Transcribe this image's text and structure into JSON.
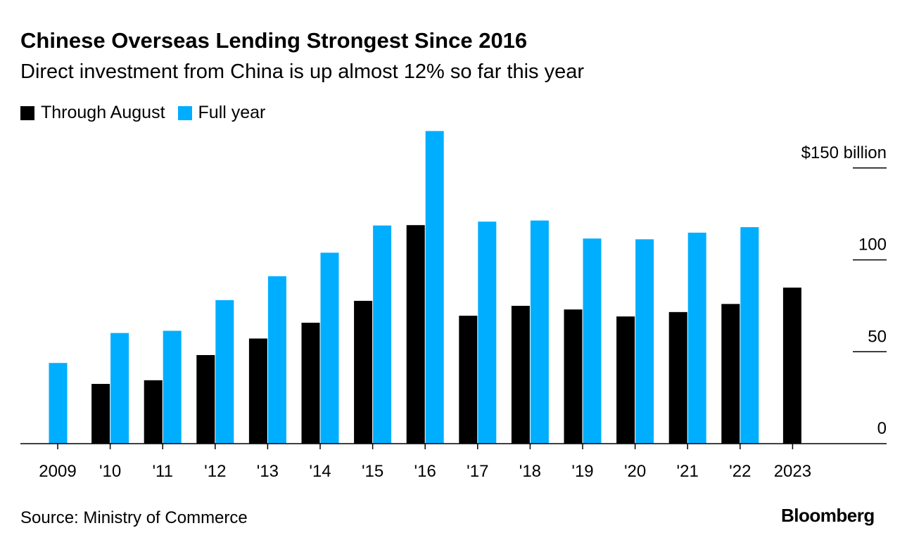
{
  "header": {
    "title": "Chinese Overseas Lending Strongest Since 2016",
    "subtitle": "Direct investment from China is up almost 12% so far this year"
  },
  "legend": {
    "items": [
      {
        "label": "Through August",
        "color": "#000000"
      },
      {
        "label": "Full year",
        "color": "#00aeff"
      }
    ]
  },
  "chart_data": {
    "type": "bar",
    "categories": [
      "2009",
      "'10",
      "'11",
      "'12",
      "'13",
      "'14",
      "'15",
      "'16",
      "'17",
      "'18",
      "'19",
      "'20",
      "'21",
      "'22",
      "2023"
    ],
    "series": [
      {
        "name": "Through August",
        "color": "#000000",
        "values": [
          null,
          32.5,
          34.5,
          48.2,
          57.2,
          65.8,
          77.7,
          118.9,
          69.6,
          75.0,
          73.0,
          69.2,
          71.6,
          76.0,
          84.9
        ]
      },
      {
        "name": "Full year",
        "color": "#00aeff",
        "values": [
          43.9,
          60.2,
          61.4,
          78.1,
          91.1,
          103.9,
          118.7,
          170.1,
          120.8,
          121.4,
          111.6,
          111.2,
          114.8,
          117.8,
          null
        ]
      }
    ],
    "yticks": [
      {
        "value": 0,
        "label": "0"
      },
      {
        "value": 50,
        "label": "50"
      },
      {
        "value": 100,
        "label": "100"
      },
      {
        "value": 150,
        "label": "$150 billion"
      }
    ],
    "ylim": [
      0,
      175
    ],
    "grid": "ticks-right",
    "legend_position": "top-left"
  },
  "footer": {
    "source": "Source: Ministry of Commerce",
    "brand": "Bloomberg"
  }
}
